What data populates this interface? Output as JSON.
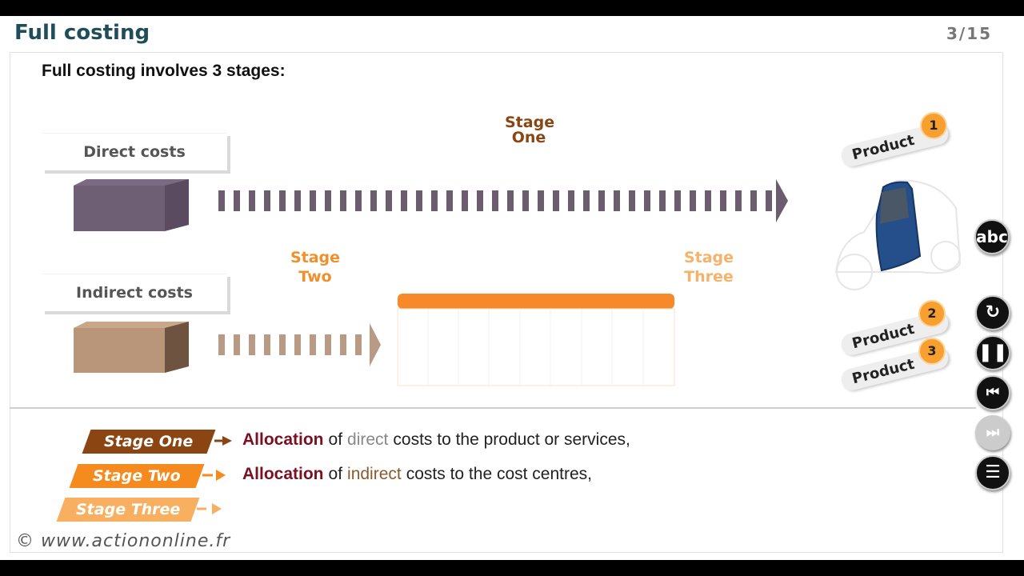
{
  "header": {
    "title": "Full costing",
    "page": "3/15"
  },
  "intro": "Full costing involves 3 stages:",
  "diagram": {
    "direct_label": "Direct costs",
    "indirect_label": "Indirect costs",
    "stage_one": "Stage One",
    "stage_two": "Stage Two",
    "stage_three": "Stage Three",
    "products": [
      {
        "label": "Product",
        "number": "1"
      },
      {
        "label": "Product",
        "number": "2"
      },
      {
        "label": "Product",
        "number": "3"
      }
    ]
  },
  "controls": {
    "glossary": "abc"
  },
  "legend": [
    {
      "tag": "Stage One",
      "parts": [
        "Allocation",
        "of",
        "direct",
        "costs to the product or services,"
      ]
    },
    {
      "tag": "Stage Two",
      "parts": [
        "Allocation",
        "of",
        "indirect",
        "costs to the cost centres,"
      ]
    },
    {
      "tag": "Stage Three"
    }
  ],
  "footer": "© www.actiononline.fr"
}
